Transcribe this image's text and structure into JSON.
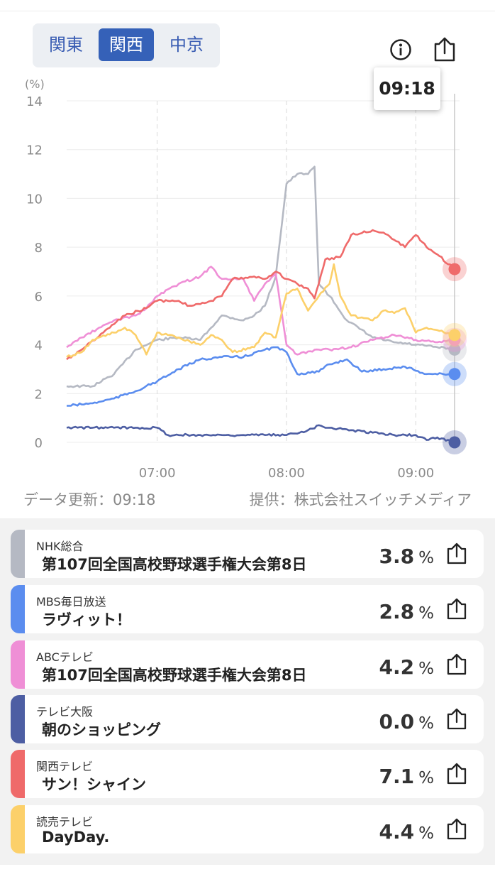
{
  "tabs": [
    {
      "label": "関東",
      "active": false
    },
    {
      "label": "関西",
      "active": true
    },
    {
      "label": "中京",
      "active": false
    }
  ],
  "icons": {
    "info": "info-icon",
    "share": "share-icon"
  },
  "tooltip_time": "09:18",
  "footer": {
    "updated": "データ更新：09:18",
    "provider": "提供：株式会社スイッチメディア"
  },
  "chart_data": {
    "type": "line",
    "ylabel": "(%)",
    "ylim": [
      0,
      14
    ],
    "yticks": [
      0,
      2,
      4,
      6,
      8,
      10,
      12,
      14
    ],
    "xlim": [
      "06:18",
      "09:18"
    ],
    "xticks": [
      "07:00",
      "08:00",
      "09:00"
    ],
    "current_time": "09:18",
    "series": [
      {
        "name": "NHK総合",
        "color": "#b5b9c3",
        "points": [
          [
            "06:18",
            2.3
          ],
          [
            "06:30",
            2.3
          ],
          [
            "06:40",
            2.8
          ],
          [
            "06:50",
            3.8
          ],
          [
            "07:00",
            4.2
          ],
          [
            "07:10",
            4.3
          ],
          [
            "07:20",
            4.2
          ],
          [
            "07:30",
            5.2
          ],
          [
            "07:40",
            5.0
          ],
          [
            "07:45",
            5.2
          ],
          [
            "07:50",
            5.6
          ],
          [
            "07:55",
            6.8
          ],
          [
            "08:00",
            10.6
          ],
          [
            "08:05",
            11.0
          ],
          [
            "08:10",
            11.0
          ],
          [
            "08:13",
            11.3
          ],
          [
            "08:15",
            6.5
          ],
          [
            "08:20",
            6.0
          ],
          [
            "08:28",
            5.0
          ],
          [
            "08:40",
            4.3
          ],
          [
            "08:50",
            4.1
          ],
          [
            "09:00",
            4.0
          ],
          [
            "09:10",
            3.9
          ],
          [
            "09:18",
            3.8
          ]
        ]
      },
      {
        "name": "MBS毎日放送",
        "color": "#5b8def",
        "points": [
          [
            "06:18",
            1.5
          ],
          [
            "06:30",
            1.6
          ],
          [
            "06:40",
            1.8
          ],
          [
            "06:50",
            2.1
          ],
          [
            "07:00",
            2.5
          ],
          [
            "07:10",
            3.0
          ],
          [
            "07:20",
            3.4
          ],
          [
            "07:30",
            3.5
          ],
          [
            "07:40",
            3.5
          ],
          [
            "07:50",
            3.8
          ],
          [
            "07:55",
            3.9
          ],
          [
            "08:00",
            3.7
          ],
          [
            "08:05",
            2.8
          ],
          [
            "08:15",
            2.9
          ],
          [
            "08:20",
            3.2
          ],
          [
            "08:28",
            3.4
          ],
          [
            "08:35",
            2.9
          ],
          [
            "08:45",
            3.0
          ],
          [
            "08:55",
            3.1
          ],
          [
            "09:05",
            2.8
          ],
          [
            "09:18",
            2.8
          ]
        ]
      },
      {
        "name": "ABCテレビ",
        "color": "#ef8fd6",
        "points": [
          [
            "06:18",
            3.9
          ],
          [
            "06:25",
            4.3
          ],
          [
            "06:40",
            5.0
          ],
          [
            "06:50",
            5.2
          ],
          [
            "06:55",
            5.5
          ],
          [
            "07:00",
            6.0
          ],
          [
            "07:10",
            6.5
          ],
          [
            "07:20",
            6.8
          ],
          [
            "07:25",
            7.2
          ],
          [
            "07:30",
            6.7
          ],
          [
            "07:40",
            6.7
          ],
          [
            "07:45",
            5.8
          ],
          [
            "07:50",
            6.5
          ],
          [
            "07:55",
            6.9
          ],
          [
            "08:00",
            4.0
          ],
          [
            "08:05",
            3.6
          ],
          [
            "08:15",
            3.8
          ],
          [
            "08:20",
            3.8
          ],
          [
            "08:30",
            3.9
          ],
          [
            "08:40",
            4.2
          ],
          [
            "08:50",
            4.4
          ],
          [
            "09:00",
            4.2
          ],
          [
            "09:10",
            4.1
          ],
          [
            "09:18",
            4.2
          ]
        ]
      },
      {
        "name": "テレビ大阪",
        "color": "#4d5ea3",
        "points": [
          [
            "06:18",
            0.6
          ],
          [
            "06:30",
            0.6
          ],
          [
            "06:40",
            0.6
          ],
          [
            "06:50",
            0.6
          ],
          [
            "07:00",
            0.6
          ],
          [
            "07:05",
            0.3
          ],
          [
            "07:20",
            0.3
          ],
          [
            "07:30",
            0.3
          ],
          [
            "07:40",
            0.3
          ],
          [
            "07:50",
            0.3
          ],
          [
            "08:00",
            0.3
          ],
          [
            "08:10",
            0.5
          ],
          [
            "08:15",
            0.7
          ],
          [
            "08:20",
            0.6
          ],
          [
            "08:30",
            0.5
          ],
          [
            "08:40",
            0.4
          ],
          [
            "08:50",
            0.3
          ],
          [
            "09:00",
            0.3
          ],
          [
            "09:05",
            0.1
          ],
          [
            "09:10",
            0.2
          ],
          [
            "09:18",
            0.0
          ]
        ]
      },
      {
        "name": "関西テレビ",
        "color": "#ef6a6a",
        "points": [
          [
            "06:18",
            3.4
          ],
          [
            "06:25",
            3.8
          ],
          [
            "06:35",
            4.5
          ],
          [
            "06:45",
            5.2
          ],
          [
            "06:55",
            5.5
          ],
          [
            "07:00",
            5.8
          ],
          [
            "07:10",
            5.8
          ],
          [
            "07:15",
            5.6
          ],
          [
            "07:25",
            5.8
          ],
          [
            "07:30",
            6.0
          ],
          [
            "07:35",
            6.7
          ],
          [
            "07:45",
            6.8
          ],
          [
            "07:50",
            6.7
          ],
          [
            "07:55",
            7.0
          ],
          [
            "08:00",
            6.7
          ],
          [
            "08:05",
            6.5
          ],
          [
            "08:10",
            6.3
          ],
          [
            "08:13",
            5.9
          ],
          [
            "08:18",
            7.5
          ],
          [
            "08:25",
            7.6
          ],
          [
            "08:30",
            8.5
          ],
          [
            "08:40",
            8.7
          ],
          [
            "08:45",
            8.6
          ],
          [
            "08:50",
            8.3
          ],
          [
            "08:55",
            8.0
          ],
          [
            "09:00",
            8.5
          ],
          [
            "09:05",
            8.0
          ],
          [
            "09:10",
            7.7
          ],
          [
            "09:18",
            7.1
          ]
        ]
      },
      {
        "name": "読売テレビ",
        "color": "#fcd06a",
        "points": [
          [
            "06:18",
            3.5
          ],
          [
            "06:25",
            3.7
          ],
          [
            "06:30",
            4.2
          ],
          [
            "06:40",
            4.5
          ],
          [
            "06:45",
            4.7
          ],
          [
            "06:50",
            4.4
          ],
          [
            "06:55",
            3.6
          ],
          [
            "07:00",
            4.5
          ],
          [
            "07:10",
            4.3
          ],
          [
            "07:20",
            4.0
          ],
          [
            "07:25",
            4.4
          ],
          [
            "07:30",
            4.2
          ],
          [
            "07:35",
            3.7
          ],
          [
            "07:45",
            3.9
          ],
          [
            "07:50",
            4.5
          ],
          [
            "07:55",
            4.3
          ],
          [
            "08:00",
            6.1
          ],
          [
            "08:05",
            6.3
          ],
          [
            "08:10",
            5.4
          ],
          [
            "08:15",
            6.0
          ],
          [
            "08:20",
            6.5
          ],
          [
            "08:22",
            7.3
          ],
          [
            "08:25",
            6.0
          ],
          [
            "08:30",
            5.2
          ],
          [
            "08:40",
            5.0
          ],
          [
            "08:45",
            5.4
          ],
          [
            "08:50",
            5.3
          ],
          [
            "08:55",
            5.5
          ],
          [
            "09:00",
            4.5
          ],
          [
            "09:05",
            4.7
          ],
          [
            "09:10",
            4.6
          ],
          [
            "09:18",
            4.4
          ]
        ]
      }
    ]
  },
  "stations": [
    {
      "station": "NHK総合",
      "program": "第107回全国高校野球選手権大会第8日",
      "value": "3.8",
      "unit": "%",
      "color": "#b5b9c3"
    },
    {
      "station": "MBS毎日放送",
      "program": "ラヴィット！",
      "value": "2.8",
      "unit": "%",
      "color": "#5b8def"
    },
    {
      "station": "ABCテレビ",
      "program": "第107回全国高校野球選手権大会第8日",
      "value": "4.2",
      "unit": "%",
      "color": "#ef8fd6"
    },
    {
      "station": "テレビ大阪",
      "program": "朝のショッピング",
      "value": "0.0",
      "unit": "%",
      "color": "#4d5ea3"
    },
    {
      "station": "関西テレビ",
      "program": "サン！シャイン",
      "value": "7.1",
      "unit": "%",
      "color": "#ef6a6a"
    },
    {
      "station": "読売テレビ",
      "program": "DayDay.",
      "value": "4.4",
      "unit": "%",
      "color": "#fcd06a"
    }
  ]
}
